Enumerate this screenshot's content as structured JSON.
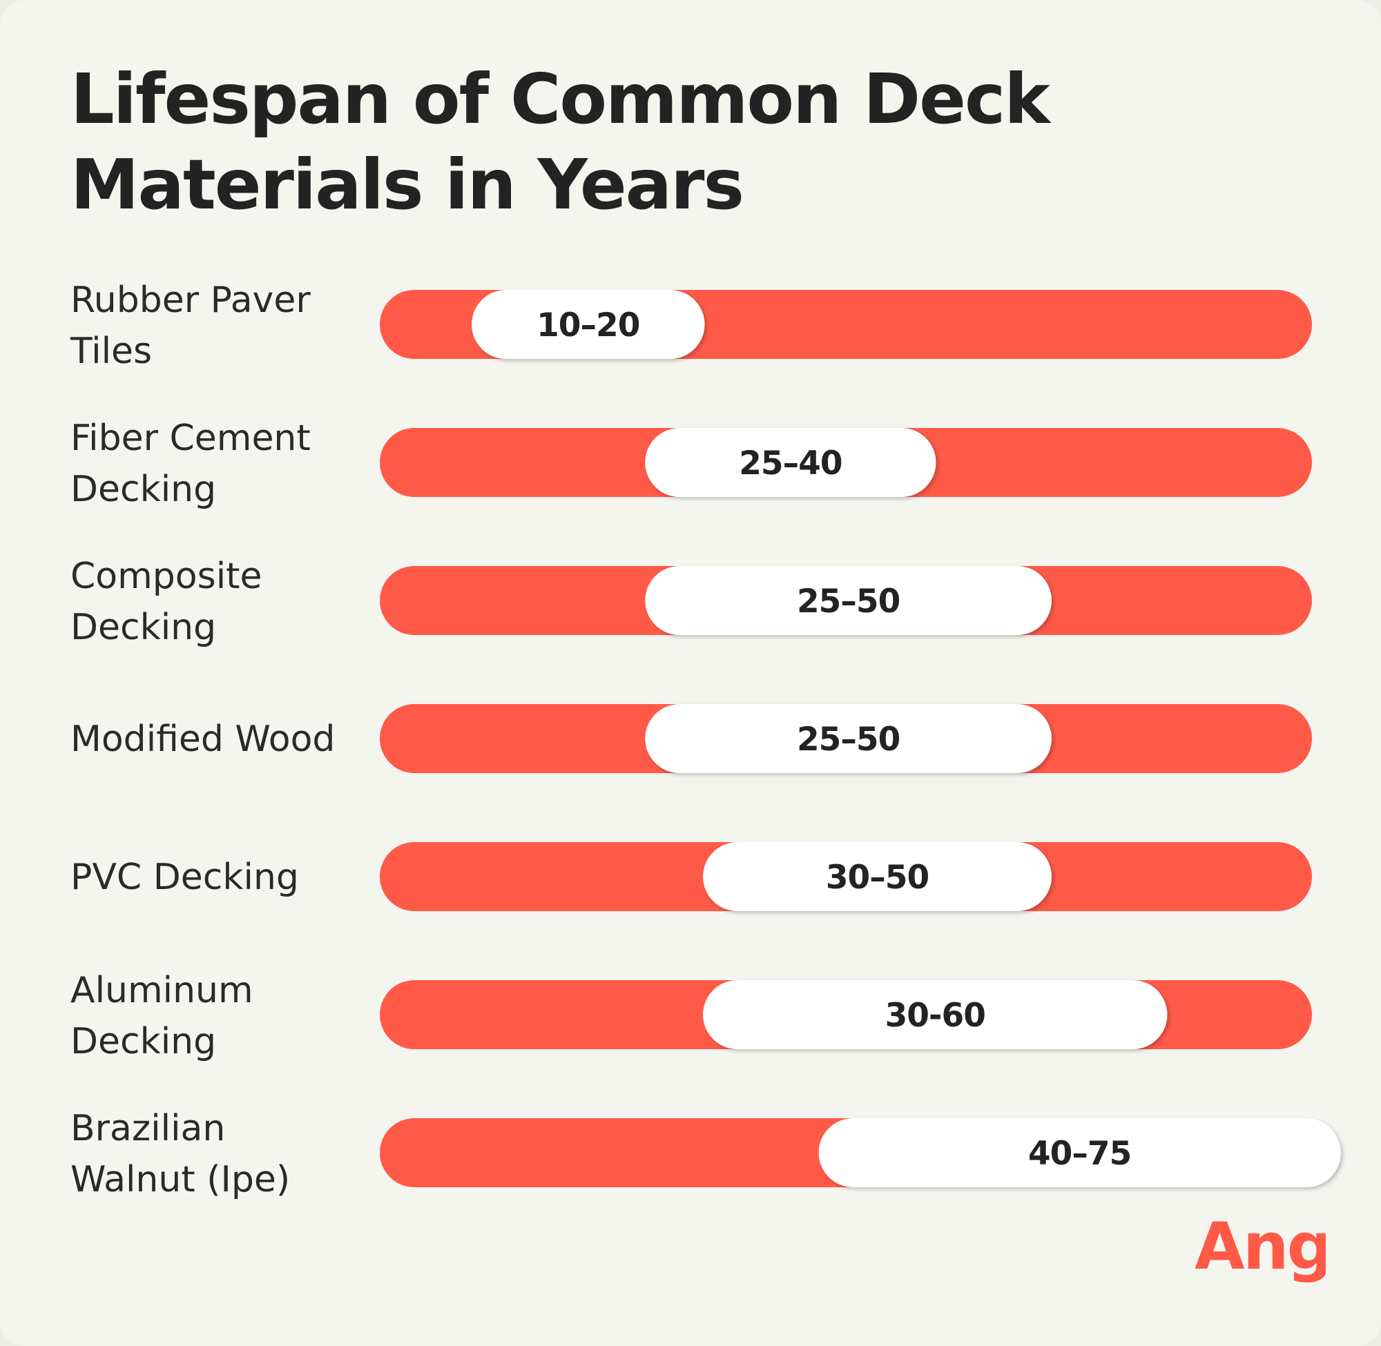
{
  "chart_data": {
    "type": "range_bar",
    "title": "Lifespan of Common Deck Materials in Years",
    "xlabel": "",
    "ylabel": "",
    "xlim": [
      0,
      80
    ],
    "series": [
      {
        "name": "Lifespan (years)",
        "items": [
          {
            "category": "Rubber Paver Tiles",
            "lines": [
              "Rubber Paver",
              "Tiles"
            ],
            "min": 10,
            "max": 20,
            "label": "10–20"
          },
          {
            "category": "Fiber Cement Decking",
            "lines": [
              "Fiber Cement",
              "Decking"
            ],
            "min": 25,
            "max": 40,
            "label": "25–40"
          },
          {
            "category": "Composite Decking",
            "lines": [
              "Composite",
              "Decking"
            ],
            "min": 25,
            "max": 50,
            "label": "25–50"
          },
          {
            "category": "Modified Wood",
            "lines": [
              "Modified Wood"
            ],
            "min": 25,
            "max": 50,
            "label": "25–50"
          },
          {
            "category": "PVC Decking",
            "lines": [
              "PVC Decking"
            ],
            "min": 30,
            "max": 50,
            "label": "30–50"
          },
          {
            "category": "Aluminum Decking",
            "lines": [
              "Aluminum",
              "Decking"
            ],
            "min": 30,
            "max": 60,
            "label": "30-60"
          },
          {
            "category": "Brazilian Walnut (Ipe)",
            "lines": [
              "Brazilian",
              "Walnut (Ipe)"
            ],
            "min": 40,
            "max": 75,
            "label": "40–75"
          }
        ]
      }
    ],
    "colors": {
      "track": "#ff5a48",
      "range": "#ffffff",
      "text": "#232323"
    }
  },
  "brand": {
    "logo_text": "Angi",
    "color": "#ff5a48"
  }
}
